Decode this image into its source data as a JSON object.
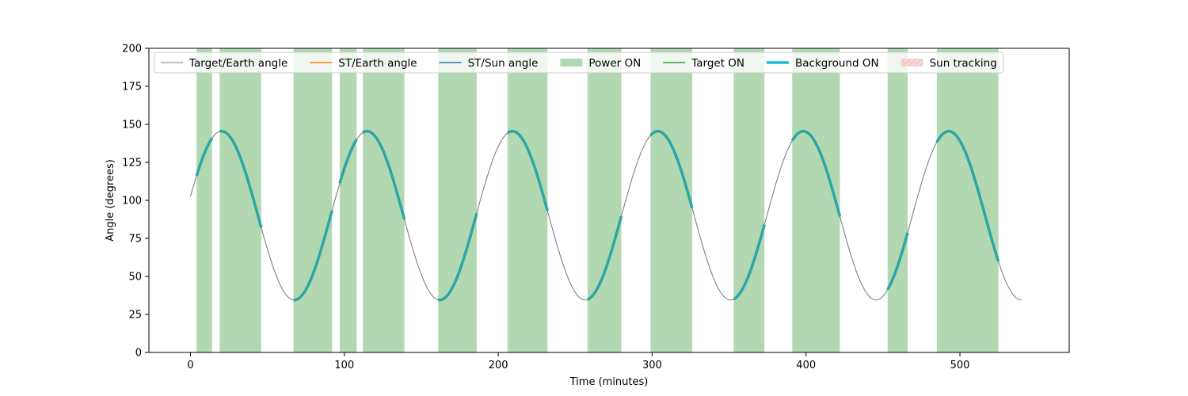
{
  "chart_data": {
    "type": "line",
    "title": "",
    "xlabel": "Time (minutes)",
    "ylabel": "Angle (degrees)",
    "xlim": [
      -27,
      571
    ],
    "ylim": [
      0,
      200
    ],
    "x_ticks": [
      0,
      100,
      200,
      300,
      400,
      500
    ],
    "y_ticks": [
      0,
      25,
      50,
      75,
      100,
      125,
      150,
      175,
      200
    ],
    "grid": false,
    "legend_position": "top",
    "colors": {
      "target_earth": "#808080",
      "st_earth": "#ff7f0e",
      "st_sun": "#1f77b4",
      "power_on": "#b2d8b2",
      "target_on": "#2ca02c",
      "background_on": "#2ca6a4",
      "background_on_legend": "#17becf",
      "sun_tracking": "#f8d5d5"
    },
    "legend": [
      {
        "label": "Target/Earth angle",
        "kind": "line",
        "color": "#808080",
        "width": 1
      },
      {
        "label": "ST/Earth angle",
        "kind": "line",
        "color": "#ff7f0e",
        "width": 1.5
      },
      {
        "label": "ST/Sun angle",
        "kind": "line",
        "color": "#1f77b4",
        "width": 1.5
      },
      {
        "label": "Power ON",
        "kind": "patch",
        "color": "#b2d8b2"
      },
      {
        "label": "Target ON",
        "kind": "line",
        "color": "#2ca02c",
        "width": 1.5
      },
      {
        "label": "Background ON",
        "kind": "line",
        "color": "#17becf",
        "width": 3.5
      },
      {
        "label": "Sun tracking",
        "kind": "hatch",
        "color": "#f8d5d5"
      }
    ],
    "series": [
      {
        "name": "Target/Earth angle",
        "model": {
          "mean": 90,
          "amplitude": 55.5,
          "period_min": 94.5,
          "phase_min": -3.4,
          "t_start": 0,
          "t_end": 540
        }
      }
    ],
    "power_on_intervals": [
      [
        4,
        14
      ],
      [
        19,
        46
      ],
      [
        67,
        92
      ],
      [
        97,
        108
      ],
      [
        112,
        139
      ],
      [
        161,
        186
      ],
      [
        206,
        232
      ],
      [
        258,
        280
      ],
      [
        299,
        326
      ],
      [
        353,
        373
      ],
      [
        391,
        422
      ],
      [
        453,
        466
      ],
      [
        485,
        525
      ]
    ],
    "background_on_intervals": [
      [
        4,
        14
      ],
      [
        19,
        46
      ],
      [
        67,
        92
      ],
      [
        97,
        108
      ],
      [
        112,
        139
      ],
      [
        161,
        186
      ],
      [
        206,
        232
      ],
      [
        258,
        280
      ],
      [
        299,
        326
      ],
      [
        353,
        373
      ],
      [
        391,
        422
      ],
      [
        453,
        466
      ],
      [
        485,
        525
      ]
    ]
  }
}
